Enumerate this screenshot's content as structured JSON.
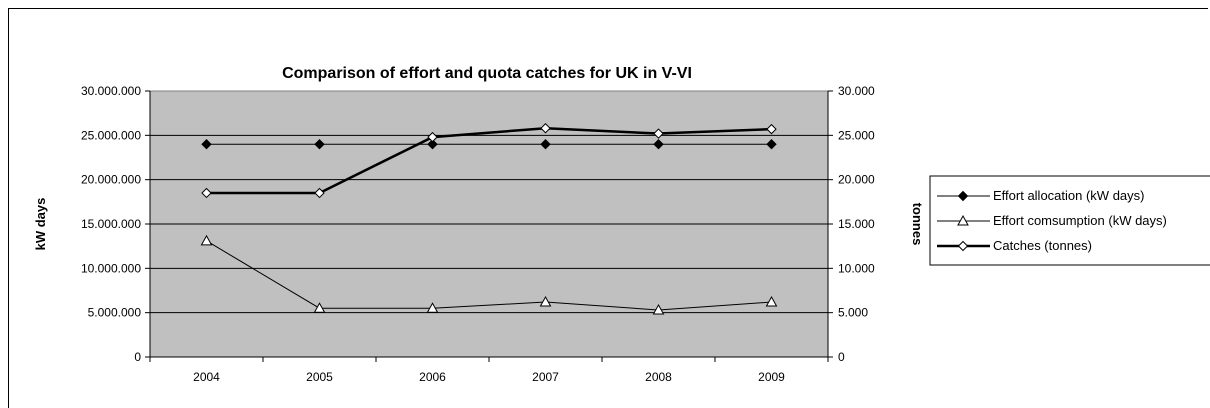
{
  "chart_data": {
    "type": "line",
    "title": "Comparison of effort and quota catches for UK in V-VI",
    "categories": [
      "2004",
      "2005",
      "2006",
      "2007",
      "2008",
      "2009"
    ],
    "ylabel_left": "kW days",
    "ylabel_right": "tonnes",
    "ylim_left": [
      0,
      30000000
    ],
    "ylim_right": [
      0,
      30000
    ],
    "yticks_left": [
      "0",
      "5.000.000",
      "10.000.000",
      "15.000.000",
      "20.000.000",
      "25.000.000",
      "30.000.000"
    ],
    "yticks_right": [
      "0",
      "5.000",
      "10.000",
      "15.000",
      "20.000",
      "25.000",
      "30.000"
    ],
    "grid": true,
    "legend_position": "right",
    "plot_background": "#c0c0c0",
    "series": [
      {
        "name": "Effort allocation (kW days)",
        "axis": "left",
        "marker": "filled-diamond",
        "line": "thin",
        "values": [
          24000000,
          24000000,
          24000000,
          24000000,
          24000000,
          24000000
        ]
      },
      {
        "name": "Effort comsumption (kW days)",
        "axis": "left",
        "marker": "open-triangle",
        "line": "thin",
        "values": [
          13100000,
          5500000,
          5500000,
          6200000,
          5300000,
          6200000
        ]
      },
      {
        "name": "Catches (tonnes)",
        "axis": "right",
        "marker": "open-diamond",
        "line": "thick",
        "values": [
          18500,
          18500,
          24800,
          25800,
          25200,
          25700
        ]
      }
    ]
  }
}
